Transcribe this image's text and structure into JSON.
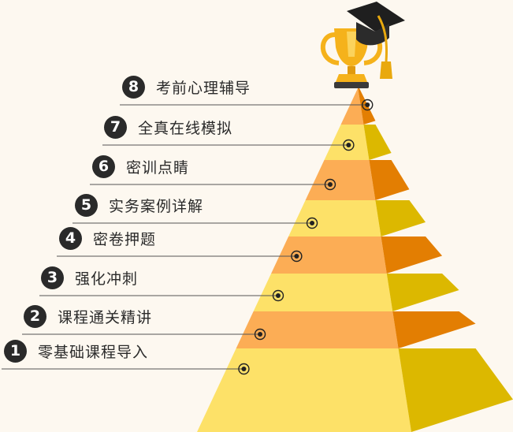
{
  "levels": [
    {
      "num": "1",
      "label": "零基础课程导入"
    },
    {
      "num": "2",
      "label": "课程通关精讲"
    },
    {
      "num": "3",
      "label": "强化冲刺"
    },
    {
      "num": "4",
      "label": "密卷押题"
    },
    {
      "num": "5",
      "label": "实务案例详解"
    },
    {
      "num": "6",
      "label": "密训点睛"
    },
    {
      "num": "7",
      "label": "全真在线模拟"
    },
    {
      "num": "8",
      "label": "考前心理辅导"
    }
  ],
  "colors": {
    "yellow_front": "#fde168",
    "yellow_side": "#dcb800",
    "orange_front": "#fcad55",
    "orange_side": "#e37e02",
    "trophy": "#f5b21b",
    "cap": "#1f1f1f",
    "tassel": "#e9a90e",
    "text": "#2a2a2a"
  }
}
